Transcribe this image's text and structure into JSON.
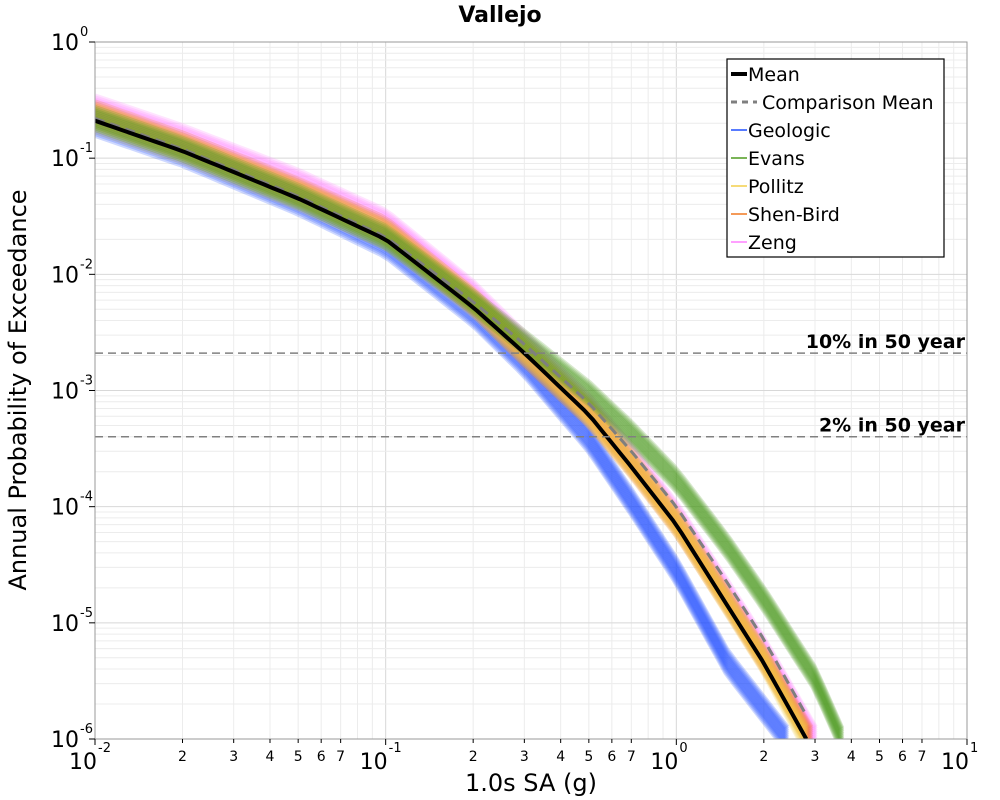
{
  "chart_data": {
    "type": "line",
    "title": "Vallejo",
    "xlabel": "1.0s SA (g)",
    "ylabel": "Annual Probability of Exceedance",
    "x_scale": "log",
    "y_scale": "log",
    "xlim": [
      0.01,
      10
    ],
    "ylim": [
      1e-06,
      1
    ],
    "grid": true,
    "legend_position": "top-right",
    "x_major_ticks": [
      {
        "base": "10",
        "exp": "-2",
        "value": 0.01
      },
      {
        "base": "10",
        "exp": "-1",
        "value": 0.1
      },
      {
        "base": "10",
        "exp": "0",
        "value": 1
      },
      {
        "base": "10",
        "exp": "1",
        "value": 10
      }
    ],
    "y_major_ticks": [
      {
        "base": "10",
        "exp": "0",
        "value": 1
      },
      {
        "base": "10",
        "exp": "-1",
        "value": 0.1
      },
      {
        "base": "10",
        "exp": "-2",
        "value": 0.01
      },
      {
        "base": "10",
        "exp": "-3",
        "value": 0.001
      },
      {
        "base": "10",
        "exp": "-4",
        "value": 0.0001
      },
      {
        "base": "10",
        "exp": "-5",
        "value": 1e-05
      },
      {
        "base": "10",
        "exp": "-6",
        "value": 1e-06
      }
    ],
    "x_minor_tick_labels": [
      "2",
      "3",
      "4",
      "5",
      "6",
      "7"
    ],
    "reference_lines": [
      {
        "label": "10% in 50 year",
        "y": 0.0021
      },
      {
        "label": "2% in 50 year",
        "y": 0.0004
      }
    ],
    "legend": [
      {
        "name": "Mean",
        "color": "#000000",
        "style": "solid-thick"
      },
      {
        "name": "Comparison Mean",
        "color": "#7f7f7f",
        "style": "dashed"
      },
      {
        "name": "Geologic",
        "color": "#1f4fff",
        "style": "solid"
      },
      {
        "name": "Evans",
        "color": "#4e9a1f",
        "style": "solid"
      },
      {
        "name": "Pollitz",
        "color": "#f2cf4a",
        "style": "solid"
      },
      {
        "name": "Shen-Bird",
        "color": "#f07820",
        "style": "solid"
      },
      {
        "name": "Zeng",
        "color": "#ff80ff",
        "style": "solid"
      }
    ],
    "series": [
      {
        "name": "Mean",
        "x": [
          0.01,
          0.02,
          0.05,
          0.1,
          0.2,
          0.3,
          0.5,
          0.7,
          1.0,
          1.5,
          2.0,
          2.8
        ],
        "y": [
          0.21,
          0.115,
          0.045,
          0.02,
          0.0052,
          0.0021,
          0.00062,
          0.00022,
          7e-05,
          1.4e-05,
          4.5e-06,
          1e-06
        ]
      },
      {
        "name": "Comparison Mean",
        "x": [
          0.01,
          0.02,
          0.05,
          0.1,
          0.2,
          0.3,
          0.5,
          0.7,
          1.0,
          1.5,
          2.0,
          2.8
        ],
        "y": [
          0.22,
          0.12,
          0.047,
          0.021,
          0.0058,
          0.0025,
          0.00078,
          0.0003,
          0.0001,
          2.2e-05,
          7.2e-06,
          1.6e-06
        ]
      },
      {
        "name": "Geologic",
        "x": [
          0.01,
          0.02,
          0.05,
          0.1,
          0.2,
          0.3,
          0.5,
          0.7,
          1.0,
          1.5,
          2.4
        ],
        "y": [
          0.2,
          0.11,
          0.042,
          0.018,
          0.0046,
          0.0017,
          0.00038,
          0.00011,
          2.8e-05,
          4.5e-06,
          1e-06
        ]
      },
      {
        "name": "Evans",
        "x": [
          0.01,
          0.02,
          0.05,
          0.1,
          0.2,
          0.3,
          0.5,
          0.7,
          1.0,
          1.5,
          2.0,
          3.0,
          3.7
        ],
        "y": [
          0.22,
          0.12,
          0.047,
          0.021,
          0.0058,
          0.0026,
          0.00095,
          0.00043,
          0.00017,
          4.5e-05,
          1.6e-05,
          3.3e-06,
          1e-06
        ]
      },
      {
        "name": "Pollitz",
        "x": [
          0.01,
          0.02,
          0.05,
          0.1,
          0.2,
          0.3,
          0.5,
          0.7,
          1.0,
          1.5,
          2.0,
          2.8
        ],
        "y": [
          0.22,
          0.12,
          0.048,
          0.022,
          0.0058,
          0.0022,
          0.00065,
          0.00024,
          7.5e-05,
          1.5e-05,
          4.8e-06,
          1e-06
        ]
      },
      {
        "name": "Shen-Bird",
        "x": [
          0.01,
          0.02,
          0.05,
          0.1,
          0.2,
          0.3,
          0.5,
          0.7,
          1.0,
          1.5,
          2.0,
          2.9
        ],
        "y": [
          0.24,
          0.13,
          0.052,
          0.024,
          0.0058,
          0.0021,
          0.00063,
          0.00023,
          7.2e-05,
          1.5e-05,
          4.8e-06,
          1e-06
        ]
      },
      {
        "name": "Zeng",
        "x": [
          0.01,
          0.02,
          0.05,
          0.1,
          0.2,
          0.3,
          0.5,
          0.7,
          1.0,
          1.5,
          2.0,
          3.0
        ],
        "y": [
          0.27,
          0.15,
          0.062,
          0.028,
          0.0068,
          0.0025,
          0.00072,
          0.00027,
          8.5e-05,
          1.8e-05,
          5.8e-06,
          1e-06
        ]
      }
    ]
  }
}
